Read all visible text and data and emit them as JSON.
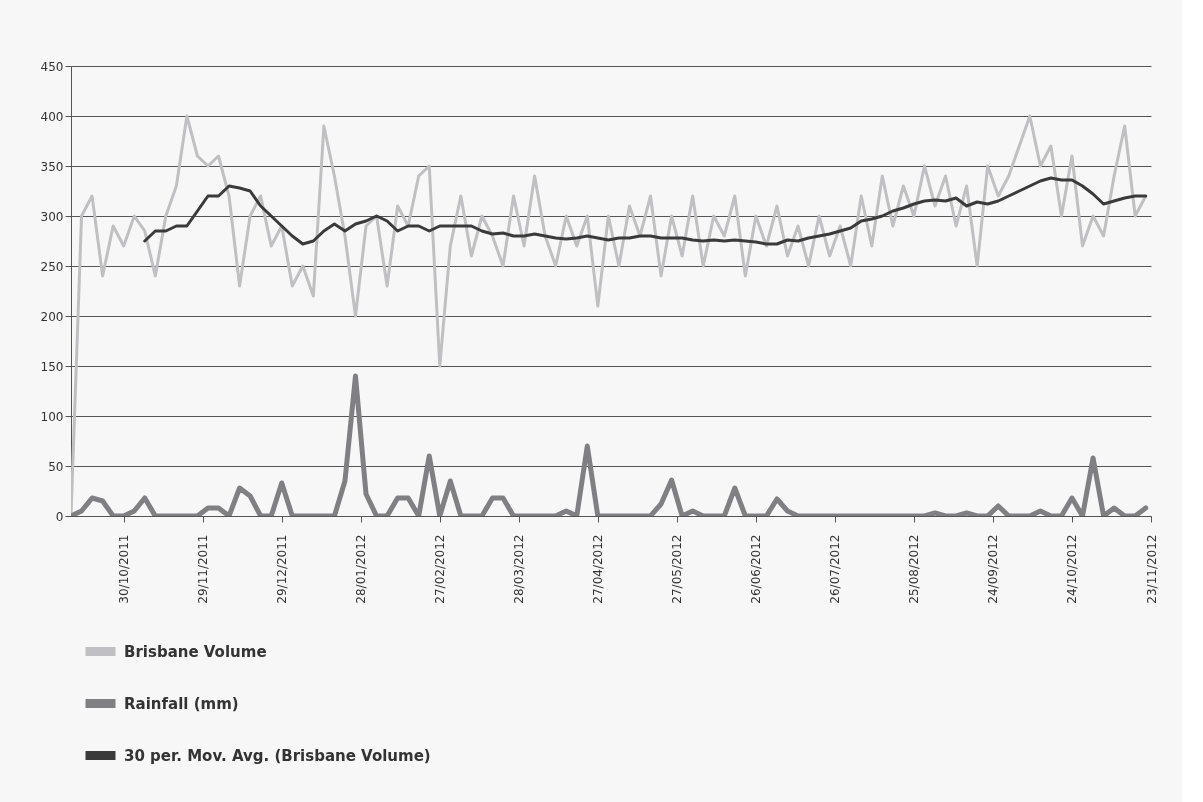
{
  "chart_data": {
    "type": "line",
    "x": [
      "2011-10-10",
      "2011-10-14",
      "2011-10-18",
      "2011-10-22",
      "2011-10-26",
      "2011-10-30",
      "2011-11-03",
      "2011-11-07",
      "2011-11-11",
      "2011-11-15",
      "2011-11-19",
      "2011-11-23",
      "2011-11-27",
      "2011-12-01",
      "2011-12-05",
      "2011-12-09",
      "2011-12-13",
      "2011-12-17",
      "2011-12-21",
      "2011-12-25",
      "2011-12-29",
      "2012-01-02",
      "2012-01-06",
      "2012-01-10",
      "2012-01-14",
      "2012-01-18",
      "2012-01-22",
      "2012-01-26",
      "2012-01-30",
      "2012-02-03",
      "2012-02-07",
      "2012-02-11",
      "2012-02-15",
      "2012-02-19",
      "2012-02-23",
      "2012-02-27",
      "2012-03-02",
      "2012-03-06",
      "2012-03-10",
      "2012-03-14",
      "2012-03-18",
      "2012-03-22",
      "2012-03-26",
      "2012-03-30",
      "2012-04-03",
      "2012-04-07",
      "2012-04-11",
      "2012-04-15",
      "2012-04-19",
      "2012-04-23",
      "2012-04-27",
      "2012-05-01",
      "2012-05-05",
      "2012-05-09",
      "2012-05-13",
      "2012-05-17",
      "2012-05-21",
      "2012-05-25",
      "2012-05-29",
      "2012-06-02",
      "2012-06-06",
      "2012-06-10",
      "2012-06-14",
      "2012-06-18",
      "2012-06-22",
      "2012-06-26",
      "2012-06-30",
      "2012-07-04",
      "2012-07-08",
      "2012-07-12",
      "2012-07-16",
      "2012-07-20",
      "2012-07-24",
      "2012-07-28",
      "2012-08-01",
      "2012-08-05",
      "2012-08-09",
      "2012-08-13",
      "2012-08-17",
      "2012-08-21",
      "2012-08-25",
      "2012-08-29",
      "2012-09-02",
      "2012-09-06",
      "2012-09-10",
      "2012-09-14",
      "2012-09-18",
      "2012-09-22",
      "2012-09-26",
      "2012-09-30",
      "2012-10-04",
      "2012-10-08",
      "2012-10-12",
      "2012-10-16",
      "2012-10-20",
      "2012-10-24",
      "2012-10-28",
      "2012-11-01",
      "2012-11-05",
      "2012-11-09",
      "2012-11-13",
      "2012-11-17",
      "2012-11-21"
    ],
    "series": [
      {
        "name": "Brisbane Volume",
        "color": "#c0c0c4",
        "values": [
          0,
          300,
          320,
          240,
          290,
          270,
          300,
          285,
          240,
          300,
          330,
          400,
          360,
          350,
          360,
          320,
          230,
          300,
          320,
          270,
          290,
          230,
          250,
          220,
          390,
          340,
          280,
          200,
          290,
          300,
          230,
          310,
          290,
          340,
          350,
          150,
          270,
          320,
          260,
          300,
          280,
          250,
          320,
          270,
          340,
          280,
          250,
          300,
          270,
          300,
          210,
          300,
          250,
          310,
          280,
          320,
          240,
          300,
          260,
          320,
          250,
          300,
          280,
          320,
          240,
          300,
          270,
          310,
          260,
          290,
          250,
          300,
          260,
          290,
          250,
          320,
          270,
          340,
          290,
          330,
          300,
          350,
          310,
          340,
          290,
          330,
          250,
          350,
          320,
          340,
          370,
          400,
          350,
          370,
          300,
          360,
          270,
          300,
          280,
          340,
          390,
          300,
          320
        ]
      },
      {
        "name": "Rainfall (mm)",
        "color": "#808084",
        "values": [
          0,
          5,
          18,
          15,
          0,
          0,
          5,
          18,
          0,
          0,
          0,
          0,
          0,
          8,
          8,
          0,
          28,
          20,
          0,
          0,
          33,
          0,
          0,
          0,
          0,
          0,
          35,
          140,
          22,
          0,
          0,
          18,
          18,
          0,
          60,
          0,
          35,
          0,
          0,
          0,
          18,
          18,
          0,
          0,
          0,
          0,
          0,
          5,
          0,
          70,
          0,
          0,
          0,
          0,
          0,
          0,
          12,
          36,
          0,
          5,
          0,
          0,
          0,
          28,
          0,
          0,
          0,
          17,
          5,
          0,
          0,
          0,
          0,
          0,
          0,
          0,
          0,
          0,
          0,
          0,
          0,
          0,
          3,
          0,
          0,
          3,
          0,
          0,
          10,
          0,
          0,
          0,
          5,
          0,
          0,
          18,
          0,
          58,
          0,
          8,
          0,
          0,
          8
        ]
      },
      {
        "name": "30 per. Mov. Avg. (Brisbane Volume)",
        "color": "#3a3a3a",
        "values": [
          null,
          null,
          null,
          null,
          null,
          null,
          null,
          275,
          285,
          285,
          290,
          290,
          305,
          320,
          320,
          330,
          328,
          325,
          310,
          300,
          290,
          280,
          272,
          275,
          285,
          292,
          285,
          292,
          295,
          300,
          295,
          285,
          290,
          290,
          285,
          290,
          290,
          290,
          290,
          285,
          282,
          283,
          280,
          280,
          282,
          280,
          278,
          277,
          278,
          280,
          278,
          276,
          278,
          278,
          280,
          280,
          278,
          278,
          278,
          276,
          275,
          276,
          275,
          276,
          275,
          274,
          272,
          272,
          276,
          275,
          278,
          280,
          282,
          285,
          288,
          295,
          297,
          300,
          305,
          308,
          312,
          315,
          316,
          315,
          318,
          310,
          314,
          312,
          315,
          320,
          325,
          330,
          335,
          338,
          336,
          336,
          330,
          322,
          312,
          315,
          318,
          320,
          320
        ]
      }
    ],
    "xlim": [
      "2011-10-10",
      "2012-11-23"
    ],
    "xticks": [
      {
        "value": "2011-10-30",
        "label": "30/10/2011"
      },
      {
        "value": "2011-11-29",
        "label": "29/11/2011"
      },
      {
        "value": "2011-12-29",
        "label": "29/12/2011"
      },
      {
        "value": "2012-01-28",
        "label": "28/01/2012"
      },
      {
        "value": "2012-02-27",
        "label": "27/02/2012"
      },
      {
        "value": "2012-03-28",
        "label": "28/03/2012"
      },
      {
        "value": "2012-04-27",
        "label": "27/04/2012"
      },
      {
        "value": "2012-05-27",
        "label": "27/05/2012"
      },
      {
        "value": "2012-06-26",
        "label": "26/06/2012"
      },
      {
        "value": "2012-07-26",
        "label": "26/07/2012"
      },
      {
        "value": "2012-08-25",
        "label": "25/08/2012"
      },
      {
        "value": "2012-09-24",
        "label": "24/09/2012"
      },
      {
        "value": "2012-10-24",
        "label": "24/10/2012"
      },
      {
        "value": "2012-11-23",
        "label": "23/11/2012"
      }
    ],
    "ylim": [
      0,
      450
    ],
    "yticks": [
      0,
      50,
      100,
      150,
      200,
      250,
      300,
      350,
      400,
      450
    ],
    "grid": "y",
    "legend": "bottom",
    "marker": "none",
    "line_style": "solid"
  }
}
